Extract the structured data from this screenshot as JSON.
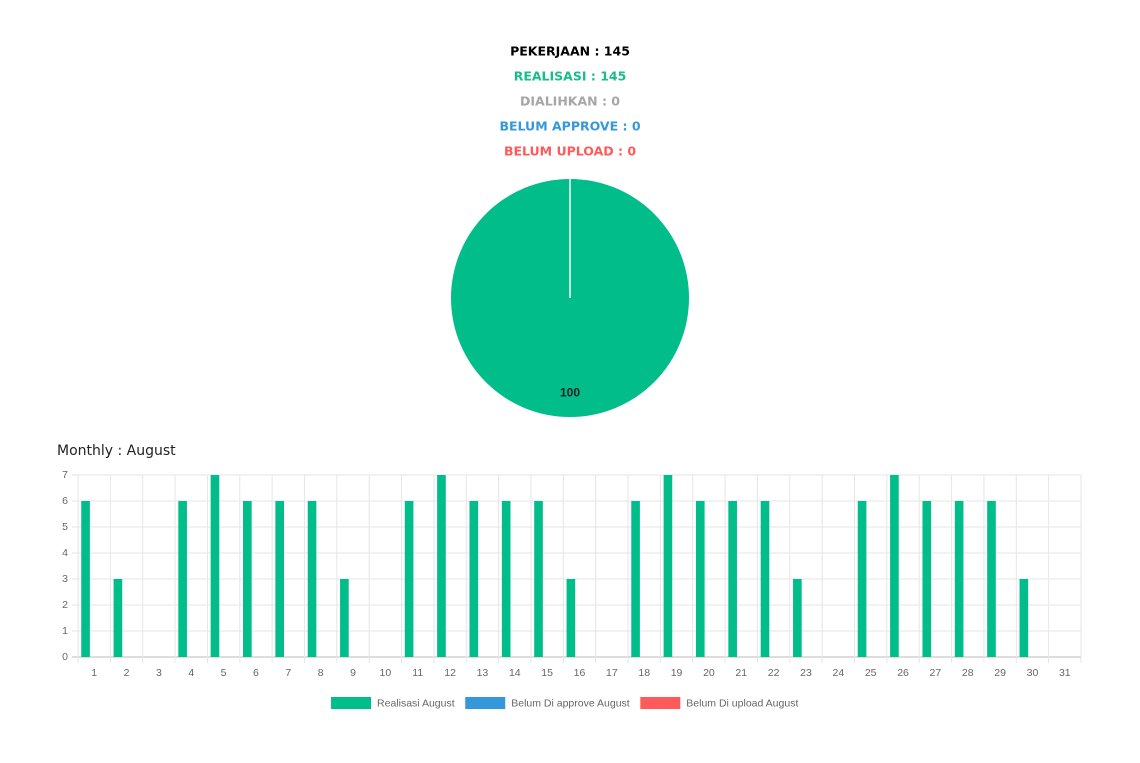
{
  "summary": [
    {
      "text": "PEKERJAAN : 145",
      "color": "#000000"
    },
    {
      "text": "REALISASI : 145",
      "color": "#1abc8c"
    },
    {
      "text": "DIALIHKAN : 0",
      "color": "#a6a6a6"
    },
    {
      "text": "BELUM APPROVE : 0",
      "color": "#3498db"
    },
    {
      "text": "BELUM UPLOAD : 0",
      "color": "#ff5a5a"
    }
  ],
  "chart_data": [
    {
      "type": "pie",
      "values": [
        100
      ],
      "colors": [
        "#00bd8a"
      ]
    },
    {
      "type": "bar",
      "title": "Monthly : August",
      "categories": [
        "1",
        "2",
        "3",
        "4",
        "5",
        "6",
        "7",
        "8",
        "9",
        "10",
        "11",
        "12",
        "13",
        "14",
        "15",
        "16",
        "17",
        "18",
        "19",
        "20",
        "21",
        "22",
        "23",
        "24",
        "25",
        "26",
        "27",
        "28",
        "29",
        "30",
        "31"
      ],
      "series": [
        {
          "name": "Realisasi August",
          "color": "#00bd8a",
          "values": [
            6,
            3,
            0,
            6,
            7,
            6,
            6,
            6,
            3,
            0,
            6,
            7,
            6,
            6,
            6,
            3,
            0,
            6,
            7,
            6,
            6,
            6,
            3,
            0,
            6,
            7,
            6,
            6,
            6,
            3,
            0
          ]
        },
        {
          "name": "Belum Di approve August",
          "color": "#3498db",
          "values": [
            0,
            0,
            0,
            0,
            0,
            0,
            0,
            0,
            0,
            0,
            0,
            0,
            0,
            0,
            0,
            0,
            0,
            0,
            0,
            0,
            0,
            0,
            0,
            0,
            0,
            0,
            0,
            0,
            0,
            0,
            0
          ]
        },
        {
          "name": "Belum Di upload August",
          "color": "#ff5a5a",
          "values": [
            0,
            0,
            0,
            0,
            0,
            0,
            0,
            0,
            0,
            0,
            0,
            0,
            0,
            0,
            0,
            0,
            0,
            0,
            0,
            0,
            0,
            0,
            0,
            0,
            0,
            0,
            0,
            0,
            0,
            0,
            0
          ]
        }
      ],
      "ylim": [
        0,
        7
      ],
      "yticks": [
        0,
        1,
        2,
        3,
        4,
        5,
        6,
        7
      ],
      "grid": true,
      "legend": "bottom"
    }
  ]
}
